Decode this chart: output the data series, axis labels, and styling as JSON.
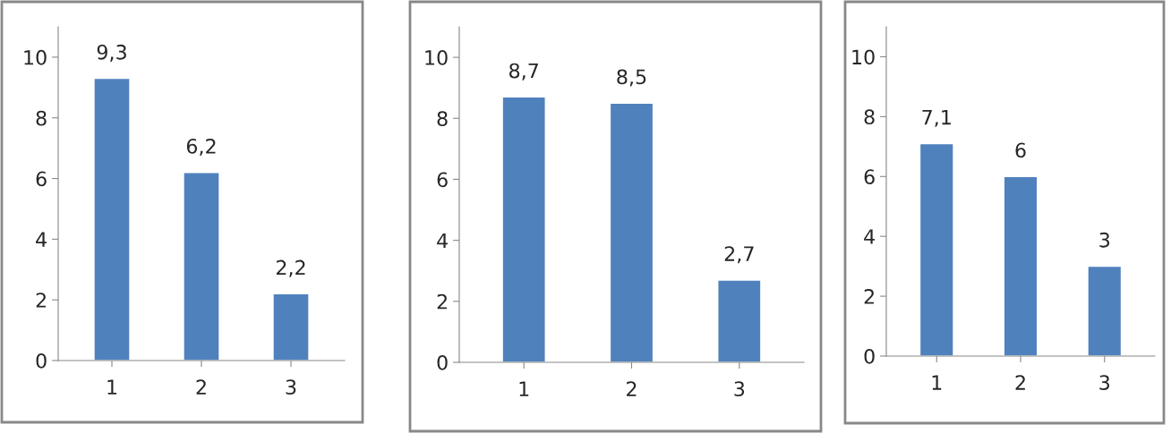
{
  "chart_data": [
    {
      "type": "bar",
      "categories": [
        "1",
        "2",
        "3"
      ],
      "values": [
        9.3,
        6.2,
        2.2
      ],
      "value_labels": [
        "9,3",
        "6,2",
        "2,2"
      ],
      "color": "#4f81bd",
      "ylim": [
        0,
        11
      ],
      "yticks": [
        0,
        2,
        4,
        6,
        8,
        10
      ],
      "grid": false,
      "legend": false
    },
    {
      "type": "bar",
      "categories": [
        "1",
        "2",
        "3"
      ],
      "values": [
        8.7,
        8.5,
        2.7
      ],
      "value_labels": [
        "8,7",
        "8,5",
        "2,7"
      ],
      "color": "#4f81bd",
      "ylim": [
        0,
        11
      ],
      "yticks": [
        0,
        2,
        4,
        6,
        8,
        10
      ],
      "grid": false,
      "legend": false
    },
    {
      "type": "bar",
      "categories": [
        "1",
        "2",
        "3"
      ],
      "values": [
        7.1,
        6,
        3
      ],
      "value_labels": [
        "7,1",
        "6",
        "3"
      ],
      "color": "#4f81bd",
      "ylim": [
        0,
        11
      ],
      "yticks": [
        0,
        2,
        4,
        6,
        8,
        10
      ],
      "grid": false,
      "legend": false
    }
  ]
}
